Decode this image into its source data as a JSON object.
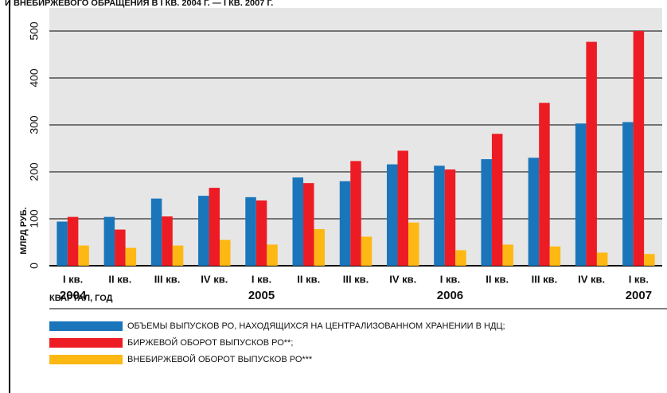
{
  "chart_data": {
    "type": "bar",
    "title": "И ВНЕБИРЖЕВОГО ОБРАЩЕНИЯ В I КВ. 2004 Г. — I КВ. 2007 Г.",
    "ylabel": "МЛРД РУБ.",
    "xlabel": "КВАРТАЛ, ГОД",
    "categories": [
      "I кв.",
      "II кв.",
      "III кв.",
      "IV кв.",
      "I кв.",
      "II кв.",
      "III кв.",
      "IV кв.",
      "I кв.",
      "II кв.",
      "III кв.",
      "IV кв.",
      "I кв."
    ],
    "years": [
      "2004",
      null,
      null,
      null,
      "2005",
      null,
      null,
      null,
      "2006",
      null,
      null,
      null,
      "2007"
    ],
    "series": [
      {
        "name": "ОБЪЕМЫ ВЫПУСКОВ РО, НАХОДЯЩИХСЯ НА ЦЕНТРАЛИЗОВАННОМ ХРАНЕНИИ В НДЦ;",
        "color": "#1a75bb",
        "values": [
          94,
          104,
          143,
          149,
          146,
          188,
          180,
          216,
          213,
          227,
          230,
          303,
          306
        ]
      },
      {
        "name": "БИРЖЕВОЙ ОБОРОТ ВЫПУСКОВ РО**;",
        "color": "#ed1c24",
        "values": [
          104,
          77,
          105,
          166,
          139,
          176,
          223,
          245,
          205,
          281,
          347,
          477,
          500
        ]
      },
      {
        "name": "ВНЕБИРЖЕВОЙ ОБОРОТ ВЫПУСКОВ РО***",
        "color": "#fdb813",
        "values": [
          43,
          38,
          43,
          55,
          45,
          78,
          62,
          92,
          33,
          45,
          41,
          28,
          25
        ]
      }
    ],
    "ylim": [
      0,
      500
    ],
    "yticks": [
      0,
      100,
      200,
      300,
      400,
      500
    ],
    "grid": true
  }
}
